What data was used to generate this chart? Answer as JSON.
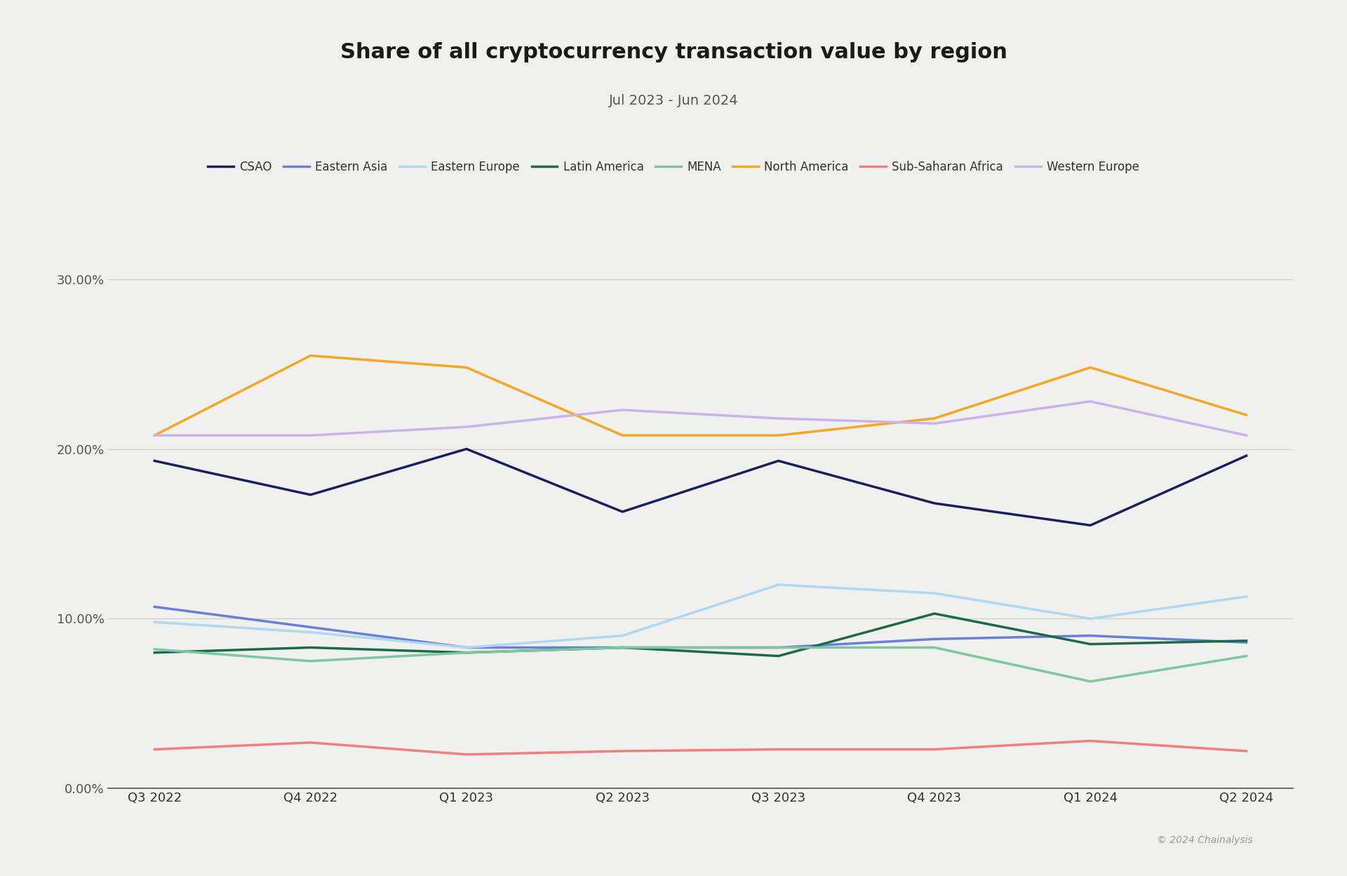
{
  "title": "Share of all cryptocurrency transaction value by region",
  "subtitle": "Jul 2023 - Jun 2024",
  "x_labels": [
    "Q3 2022",
    "Q4 2022",
    "Q1 2023",
    "Q2 2023",
    "Q3 2023",
    "Q4 2023",
    "Q1 2024",
    "Q2 2024"
  ],
  "series": {
    "CSAO": {
      "color": "#1a1f5e",
      "values": [
        0.193,
        0.173,
        0.2,
        0.163,
        0.193,
        0.168,
        0.155,
        0.196
      ]
    },
    "Eastern Asia": {
      "color": "#6b7fd7",
      "values": [
        0.107,
        0.095,
        0.083,
        0.083,
        0.083,
        0.088,
        0.09,
        0.086
      ]
    },
    "Eastern Europe": {
      "color": "#b0d8f0",
      "values": [
        0.098,
        0.092,
        0.083,
        0.09,
        0.12,
        0.115,
        0.1,
        0.113
      ]
    },
    "Latin America": {
      "color": "#1b6b4a",
      "values": [
        0.08,
        0.083,
        0.08,
        0.083,
        0.078,
        0.103,
        0.085,
        0.087
      ]
    },
    "MENA": {
      "color": "#7ec8a0",
      "values": [
        0.082,
        0.075,
        0.08,
        0.083,
        0.083,
        0.083,
        0.063,
        0.078
      ]
    },
    "North America": {
      "color": "#f5a623",
      "values": [
        0.208,
        0.255,
        0.248,
        0.208,
        0.208,
        0.218,
        0.248,
        0.22
      ]
    },
    "Sub-Saharan Africa": {
      "color": "#f08080",
      "values": [
        0.023,
        0.027,
        0.02,
        0.022,
        0.023,
        0.023,
        0.028,
        0.022
      ]
    },
    "Western Europe": {
      "color": "#c8b4e8",
      "values": [
        0.208,
        0.208,
        0.213,
        0.223,
        0.218,
        0.215,
        0.228,
        0.208
      ]
    }
  },
  "ylim": [
    0,
    0.32
  ],
  "yticks": [
    0.0,
    0.1,
    0.2,
    0.3
  ],
  "ytick_labels": [
    "0.00%",
    "10.00%",
    "20.00%",
    "30.00%"
  ],
  "background_color": "#f0f0ee",
  "grid_color": "#cccccc",
  "footer_text": "© 2024 Chainalysis",
  "title_fontsize": 22,
  "subtitle_fontsize": 14,
  "axis_fontsize": 13,
  "legend_fontsize": 12
}
